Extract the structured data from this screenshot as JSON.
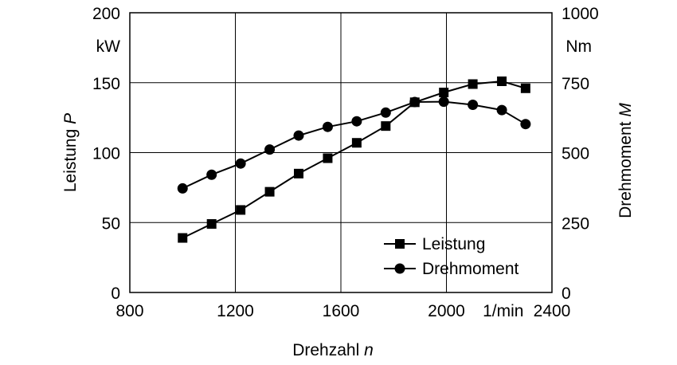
{
  "chart_data": {
    "type": "line",
    "x": [
      1000,
      1110,
      1220,
      1330,
      1440,
      1550,
      1660,
      1770,
      1880,
      1990,
      2100,
      2210,
      2300
    ],
    "series": [
      {
        "name": "Leistung",
        "axis": "left",
        "marker": "square",
        "values": [
          39,
          49,
          59,
          72,
          85,
          96,
          107,
          119,
          136,
          143,
          149,
          151,
          146
        ]
      },
      {
        "name": "Drehmoment",
        "axis": "right",
        "marker": "circle",
        "values": [
          372,
          421,
          461,
          511,
          561,
          592,
          612,
          643,
          681,
          682,
          671,
          652,
          602
        ]
      }
    ],
    "xlim": [
      800,
      2400
    ],
    "ylim_left": [
      0,
      200
    ],
    "ylim_right": [
      0,
      1000
    ],
    "xticks": [
      800,
      1200,
      1600,
      2000,
      2400
    ],
    "xtick_labels": [
      "800",
      "1200",
      "1600",
      "2000",
      "2400"
    ],
    "x_unit": "1/min",
    "yticks_left": [
      0,
      50,
      100,
      150,
      200
    ],
    "yticks_left_labels": [
      "0",
      "50",
      "100",
      "150",
      "200"
    ],
    "y_unit_left": "kW",
    "yticks_right": [
      0,
      250,
      500,
      750,
      1000
    ],
    "yticks_right_labels": [
      "0",
      "250",
      "500",
      "750",
      "1000"
    ],
    "y_unit_right": "Nm",
    "xlabel": "Drehzahl",
    "xlabel_symbol": "n",
    "ylabel_left": "Leistung",
    "ylabel_left_symbol": "P",
    "ylabel_right": "Drehmoment",
    "ylabel_right_symbol": "M",
    "grid": true,
    "legend_position": "bottom-right"
  }
}
